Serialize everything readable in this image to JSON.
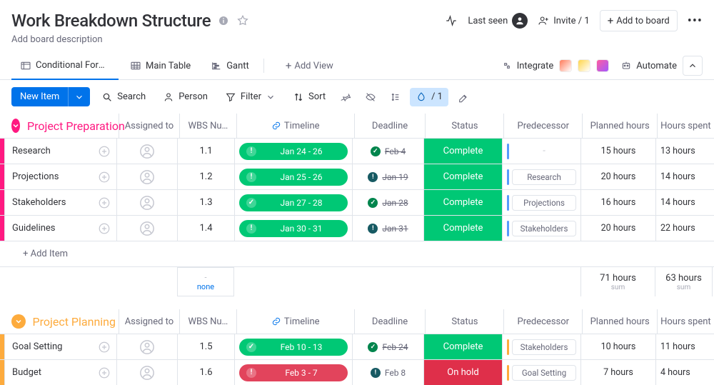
{
  "header": {
    "title": "Work Breakdown Structure",
    "description": "Add board description",
    "last_seen": "Last seen",
    "invite": "Invite / 1",
    "add_to_board": "Add to board"
  },
  "tabs": {
    "items": [
      {
        "label": "Conditional Form…"
      },
      {
        "label": "Main Table"
      },
      {
        "label": "Gantt"
      }
    ],
    "add_view": "Add View",
    "integrate": "Integrate",
    "automate": "Automate"
  },
  "toolbar": {
    "new_item": "New Item",
    "search": "Search",
    "person": "Person",
    "filter": "Filter",
    "sort": "Sort",
    "selected_count": "/ 1"
  },
  "columns": {
    "assigned_to": "Assigned to",
    "wbs": "WBS Nu…",
    "timeline": "Timeline",
    "deadline": "Deadline",
    "status": "Status",
    "predecessor": "Predecessor",
    "planned": "Planned hours",
    "spent": "Hours spent"
  },
  "colors": {
    "pink": "#ff1981",
    "orange": "#fdab3d",
    "green": "#00c875",
    "red": "#e2445c",
    "hold": "#df2f4a",
    "blue_bar": "#579bfc",
    "orange_bar": "#fdab3d",
    "deadline_green": "#00854d",
    "deadline_warn": "#175a63"
  },
  "groups": [
    {
      "title": "Project Preparation",
      "color_key": "pink",
      "rows": [
        {
          "name": "Research",
          "wbs": "1.1",
          "tl": "Jan 24 - 26",
          "tl_color": "green",
          "tl_icon": "!",
          "dl": "Feb 4",
          "dl_state": "done-strike",
          "status": "Complete",
          "status_color": "green",
          "pred": null,
          "plan": "15 hours",
          "spent": "13 hours"
        },
        {
          "name": "Projections",
          "wbs": "1.2",
          "tl": "Jan 25 - 26",
          "tl_color": "green",
          "tl_icon": "!",
          "dl": "Jan 19",
          "dl_state": "warn-strike",
          "status": "Complete",
          "status_color": "green",
          "pred": "Research",
          "plan": "20 hours",
          "spent": "14 hours"
        },
        {
          "name": "Stakeholders",
          "wbs": "1.3",
          "tl": "Jan 27 - 28",
          "tl_color": "green",
          "tl_icon": "✓",
          "dl": "Jan 28",
          "dl_state": "done-strike",
          "status": "Complete",
          "status_color": "green",
          "pred": "Projections",
          "plan": "16 hours",
          "spent": "14 hours"
        },
        {
          "name": "Guidelines",
          "wbs": "1.4",
          "tl": "Jan 30 - 31",
          "tl_color": "green",
          "tl_icon": "!",
          "dl": "Jan 31",
          "dl_state": "warn-strike",
          "status": "Complete",
          "status_color": "green",
          "pred": "Stakeholders",
          "plan": "20 hours",
          "spent": "22 hours"
        }
      ],
      "add_item": "+ Add Item",
      "summary": {
        "none_dash": "-",
        "none": "none",
        "plan": "71 hours",
        "spent": "63 hours",
        "sub": "sum"
      }
    },
    {
      "title": "Project Planning",
      "color_key": "orange",
      "rows": [
        {
          "name": "Goal Setting",
          "wbs": "1.5",
          "tl": "Feb 10 - 13",
          "tl_color": "green",
          "tl_icon": "✓",
          "dl": "Feb 24",
          "dl_state": "done-strike",
          "status": "Complete",
          "status_color": "green",
          "pred": "Stakeholders",
          "plan": "10 hours",
          "spent": "11 hours"
        },
        {
          "name": "Budget",
          "wbs": "1.6",
          "tl": "Feb 3 - 7",
          "tl_color": "red",
          "tl_icon": "!",
          "dl": "Feb 8",
          "dl_state": "warn",
          "status": "On hold",
          "status_color": "hold",
          "pred": "Goal Setting",
          "plan": "7 hours",
          "spent": "4 hours"
        }
      ]
    }
  ]
}
